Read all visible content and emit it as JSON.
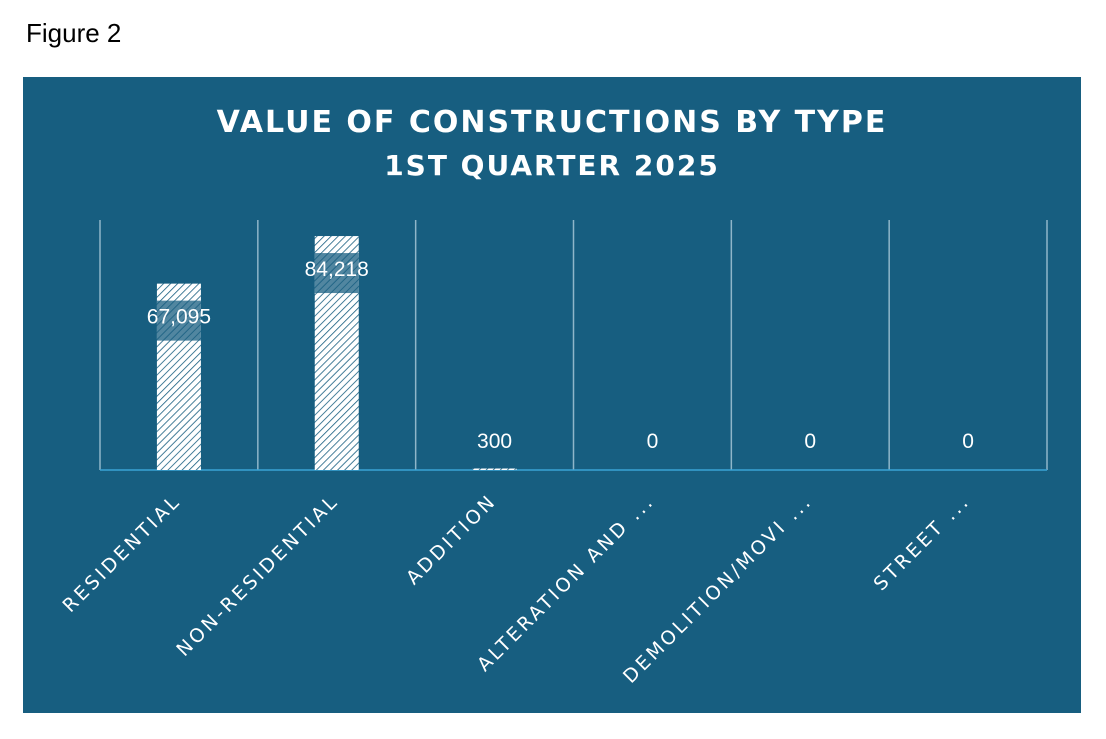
{
  "figure_label": "Figure 2",
  "colors": {
    "panel": "#175e80",
    "bar": "#ffffff",
    "axis": "#3aa3d6",
    "grid": "#8fb6c9"
  },
  "chart_data": {
    "type": "bar",
    "title": "VALUE OF CONSTRUCTIONS BY TYPE",
    "subtitle": "1ST QUARTER 2025",
    "categories": [
      "RESIDENTIAL",
      "NON-RESIDENTIAL",
      "ADDITION",
      "ALTERATION AND ...",
      "DEMOLITION/MOVI ...",
      "STREET ..."
    ],
    "values": [
      67095,
      84218,
      300,
      0,
      0,
      0
    ],
    "data_labels": [
      "67,095",
      "84,218",
      "300",
      "0",
      "0",
      "0"
    ],
    "ylim": [
      0,
      90000
    ],
    "grid": "vertical category separators",
    "legend": "none",
    "bar_pattern": "diagonal hatch"
  }
}
